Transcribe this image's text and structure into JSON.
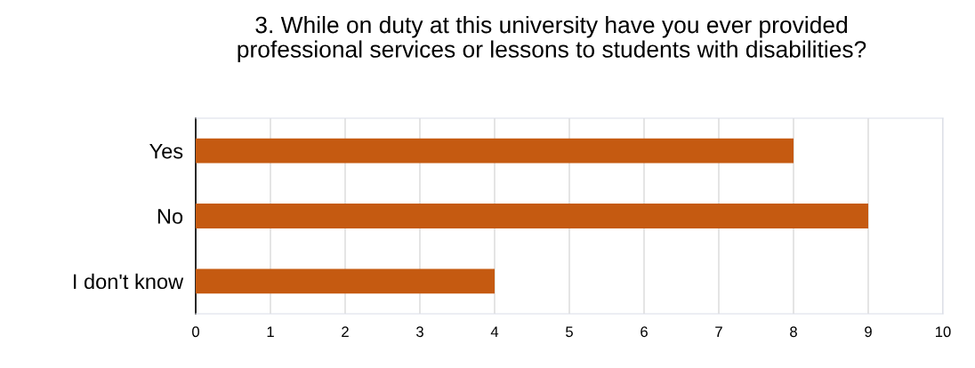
{
  "chart_data": {
    "type": "bar",
    "orientation": "horizontal",
    "title": "3. While on duty at this university have you ever provided\nprofessional services or lessons to students with disabilities?",
    "categories": [
      "Yes",
      "No",
      "I don't know"
    ],
    "values": [
      8,
      9,
      4
    ],
    "color": "#c55a11",
    "xlim": [
      0,
      10
    ],
    "xticks": [
      0,
      1,
      2,
      3,
      4,
      5,
      6,
      7,
      8,
      9,
      10
    ],
    "grid": "x"
  }
}
